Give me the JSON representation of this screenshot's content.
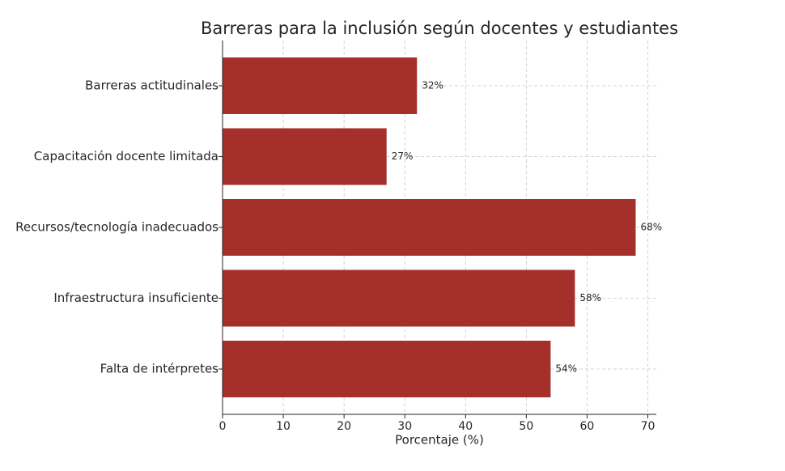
{
  "chart_data": {
    "type": "barh",
    "title": "Barreras para la inclusión según docentes y estudiantes",
    "x_label": "Porcentaje (%)",
    "categories": [
      "Barreras actitudinales",
      "Capacitación docente limitada",
      "Recursos/tecnología inadecuados",
      "Infraestructura insuficiente",
      "Falta de intérpretes"
    ],
    "values": [
      32,
      27,
      68,
      58,
      54
    ],
    "value_labels": [
      "32%",
      "27%",
      "68%",
      "58%",
      "54%"
    ],
    "color": "#a52f2a",
    "xlim": [
      0,
      71.4
    ],
    "xticks": [
      0,
      10,
      20,
      30,
      40,
      50,
      60,
      70
    ],
    "grid": true
  }
}
